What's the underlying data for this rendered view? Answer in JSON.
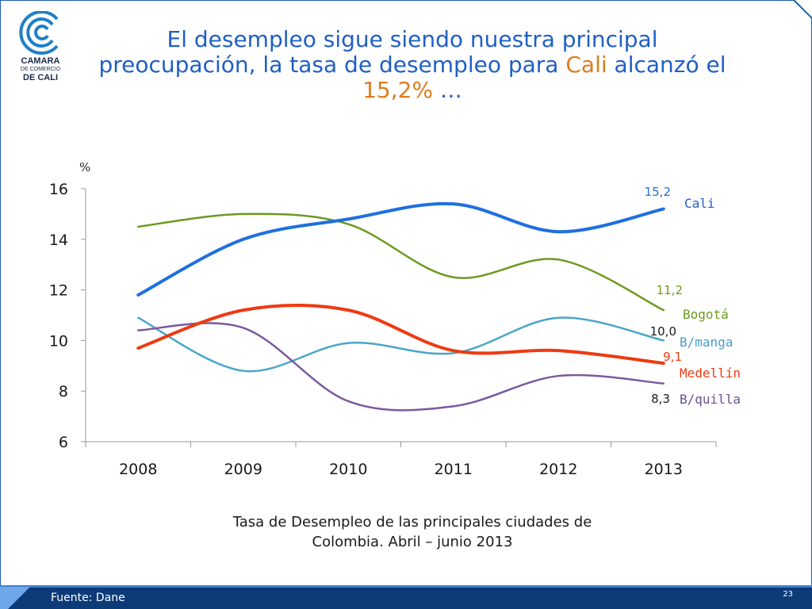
{
  "slide": {
    "title_part1": "El desempleo sigue siendo nuestra principal preocupación, la tasa de desempleo para ",
    "title_city": "Cali",
    "title_part2": " alcanzó el ",
    "title_value": "15,2%",
    "title_part3": " …",
    "caption_line1": "Tasa de Desempleo de las principales ciudades de",
    "caption_line2": "Colombia. Abril – junio 2013",
    "source": "Fuente: Dane",
    "page_number": "23",
    "logo_line1": "CAMARA",
    "logo_line2": "DE COMERCIO",
    "logo_line3": "DE CALI",
    "colors": {
      "title": "#1f5fc6",
      "highlight": "#e07c1a",
      "frame": "#1b5fa8",
      "footer": "#0d3b78"
    }
  },
  "chart_data": {
    "type": "line",
    "ylabel": "%",
    "ylim": [
      6,
      16
    ],
    "yticks": [
      6,
      8,
      10,
      12,
      14,
      16
    ],
    "categories": [
      "2008",
      "2009",
      "2010",
      "2011",
      "2012",
      "2013"
    ],
    "grid": false,
    "series": [
      {
        "name": "Cali",
        "color": "#1f6fe0",
        "width": 4,
        "values": [
          11.8,
          14.0,
          14.8,
          15.4,
          14.3,
          15.2
        ],
        "end_label": "15,2"
      },
      {
        "name": "Bogotá",
        "color": "#6b9a1f",
        "width": 2.5,
        "values": [
          14.5,
          15.0,
          14.6,
          12.5,
          13.2,
          11.2
        ],
        "end_label": "11,2"
      },
      {
        "name": "B/manga",
        "color": "#4aa6c8",
        "width": 2.5,
        "values": [
          10.9,
          8.8,
          9.9,
          9.5,
          10.9,
          10.0
        ],
        "end_label": "10,0"
      },
      {
        "name": "Medellín",
        "color": "#ee3a12",
        "width": 4,
        "values": [
          9.7,
          11.2,
          11.2,
          9.6,
          9.6,
          9.1
        ],
        "end_label": "9,1"
      },
      {
        "name": "B/quilla",
        "color": "#7a5a9c",
        "width": 2.5,
        "values": [
          10.4,
          10.5,
          7.6,
          7.4,
          8.6,
          8.3
        ],
        "end_label": "8,3"
      }
    ]
  }
}
